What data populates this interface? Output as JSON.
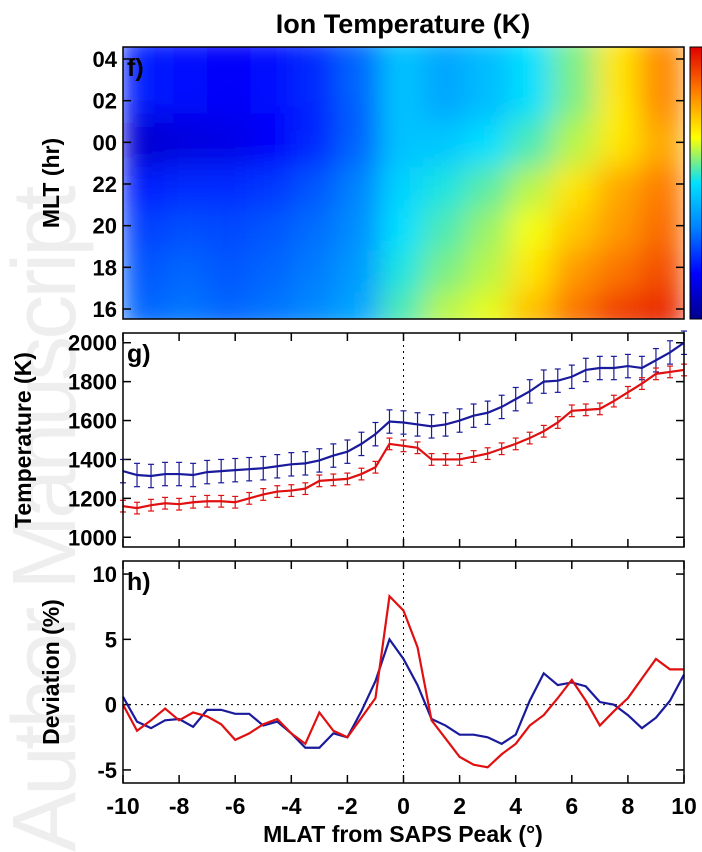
{
  "watermark": "Author Manuscript",
  "chart_data": [
    {
      "panel": "f)",
      "type": "heatmap",
      "title": "Ion Temperature (K)",
      "ylabel": "MLT (hr)",
      "yticks": [
        "04",
        "02",
        "00",
        "22",
        "20",
        "18",
        "16"
      ],
      "xlim": [
        -10,
        10
      ],
      "colorscale": [
        "#00008c",
        "#0000ff",
        "#0080ff",
        "#00e0ff",
        "#ffff00",
        "#ff8000",
        "#e00000"
      ],
      "rows": [
        {
          "mlt": "16",
          "values": [
            0.3,
            0.32,
            0.3,
            0.32,
            0.35,
            0.4,
            0.55,
            0.62,
            0.65,
            0.75,
            0.85,
            0.92,
            0.95
          ]
        },
        {
          "mlt": "18",
          "values": [
            0.28,
            0.3,
            0.28,
            0.3,
            0.33,
            0.38,
            0.52,
            0.58,
            0.62,
            0.7,
            0.8,
            0.85,
            0.9
          ]
        },
        {
          "mlt": "20",
          "values": [
            0.25,
            0.27,
            0.26,
            0.28,
            0.31,
            0.36,
            0.5,
            0.55,
            0.6,
            0.66,
            0.74,
            0.8,
            0.86
          ]
        },
        {
          "mlt": "22",
          "values": [
            0.2,
            0.22,
            0.22,
            0.24,
            0.28,
            0.34,
            0.48,
            0.52,
            0.56,
            0.62,
            0.7,
            0.78,
            0.84
          ]
        },
        {
          "mlt": "00",
          "values": [
            0.1,
            0.12,
            0.13,
            0.16,
            0.22,
            0.3,
            0.45,
            0.46,
            0.5,
            0.55,
            0.62,
            0.7,
            0.78
          ]
        },
        {
          "mlt": "02",
          "values": [
            0.12,
            0.13,
            0.14,
            0.16,
            0.2,
            0.28,
            0.45,
            0.42,
            0.46,
            0.52,
            0.6,
            0.68,
            0.8
          ]
        },
        {
          "mlt": "04",
          "values": [
            0.2,
            0.18,
            0.16,
            0.18,
            0.22,
            0.3,
            0.45,
            0.4,
            0.44,
            0.5,
            0.58,
            0.7,
            0.82
          ]
        }
      ]
    },
    {
      "panel": "g)",
      "type": "line",
      "ylabel": "Temperature (K)",
      "ylim": [
        950,
        2050
      ],
      "yticks": [
        1000,
        1200,
        1400,
        1600,
        1800,
        2000
      ],
      "xlim": [
        -10,
        10
      ],
      "x": [
        -10,
        -9.5,
        -9,
        -8.5,
        -8,
        -7.5,
        -7,
        -6.5,
        -6,
        -5.5,
        -5,
        -4.5,
        -4,
        -3.5,
        -3,
        -2.5,
        -2,
        -1.5,
        -1,
        -0.5,
        0,
        0.5,
        1,
        1.5,
        2,
        2.5,
        3,
        3.5,
        4,
        4.5,
        5,
        5.5,
        6,
        6.5,
        7,
        7.5,
        8,
        8.5,
        9,
        9.5,
        10
      ],
      "series": [
        {
          "color": "#1a1a9c",
          "error": 60,
          "values": [
            1340,
            1320,
            1315,
            1325,
            1325,
            1320,
            1335,
            1340,
            1345,
            1350,
            1355,
            1365,
            1375,
            1380,
            1395,
            1420,
            1440,
            1480,
            1530,
            1595,
            1590,
            1580,
            1570,
            1580,
            1600,
            1625,
            1640,
            1670,
            1710,
            1750,
            1800,
            1805,
            1825,
            1860,
            1870,
            1870,
            1880,
            1870,
            1910,
            1950,
            2000
          ]
        },
        {
          "color": "#e01010",
          "error": 30,
          "values": [
            1160,
            1150,
            1165,
            1175,
            1170,
            1180,
            1185,
            1185,
            1180,
            1200,
            1220,
            1235,
            1240,
            1250,
            1290,
            1295,
            1300,
            1325,
            1360,
            1480,
            1470,
            1460,
            1400,
            1400,
            1400,
            1415,
            1430,
            1455,
            1480,
            1510,
            1545,
            1590,
            1650,
            1655,
            1660,
            1700,
            1745,
            1790,
            1840,
            1850,
            1860
          ]
        }
      ]
    },
    {
      "panel": "h)",
      "type": "line",
      "ylabel": "Deviation (%)",
      "xlabel": "MLAT from SAPS Peak (°)",
      "ylim": [
        -6,
        11
      ],
      "yticks": [
        -5,
        0,
        5,
        10
      ],
      "xlim": [
        -10,
        10
      ],
      "xticks": [
        -10,
        -8,
        -6,
        -4,
        -2,
        0,
        2,
        4,
        6,
        8,
        10
      ],
      "x": [
        -10,
        -9.5,
        -9,
        -8.5,
        -8,
        -7.5,
        -7,
        -6.5,
        -6,
        -5.5,
        -5,
        -4.5,
        -4,
        -3.5,
        -3,
        -2.5,
        -2,
        -1.5,
        -1,
        -0.5,
        0,
        0.5,
        1,
        1.5,
        2,
        2.5,
        3,
        3.5,
        4,
        4.5,
        5,
        5.5,
        6,
        6.5,
        7,
        7.5,
        8,
        8.5,
        9,
        9.5,
        10
      ],
      "series": [
        {
          "color": "#1a1a9c",
          "values": [
            0.6,
            -1.3,
            -1.8,
            -1.2,
            -1.1,
            -1.7,
            -0.4,
            -0.4,
            -0.7,
            -0.7,
            -1.6,
            -1.3,
            -2.2,
            -3.3,
            -3.3,
            -2.2,
            -2.5,
            -0.5,
            1.8,
            5.0,
            3.5,
            1.5,
            -1.1,
            -1.6,
            -2.3,
            -2.3,
            -2.5,
            -3.0,
            -2.3,
            0.3,
            2.4,
            1.5,
            1.7,
            1.4,
            0.2,
            0.0,
            -0.8,
            -1.8,
            -1.0,
            0.3,
            2.3
          ]
        },
        {
          "color": "#e01010",
          "values": [
            0.0,
            -2.0,
            -1.2,
            -0.3,
            -1.2,
            -0.6,
            -0.9,
            -1.5,
            -2.7,
            -2.2,
            -1.5,
            -1.1,
            -2.2,
            -3.0,
            -0.6,
            -2.0,
            -2.5,
            -1.0,
            0.5,
            8.3,
            7.2,
            4.4,
            -1.2,
            -2.6,
            -4.0,
            -4.6,
            -4.8,
            -3.8,
            -3.0,
            -1.6,
            -0.8,
            0.5,
            1.9,
            0.3,
            -1.6,
            -0.5,
            0.5,
            2.0,
            3.5,
            2.7,
            2.7
          ]
        }
      ]
    }
  ]
}
